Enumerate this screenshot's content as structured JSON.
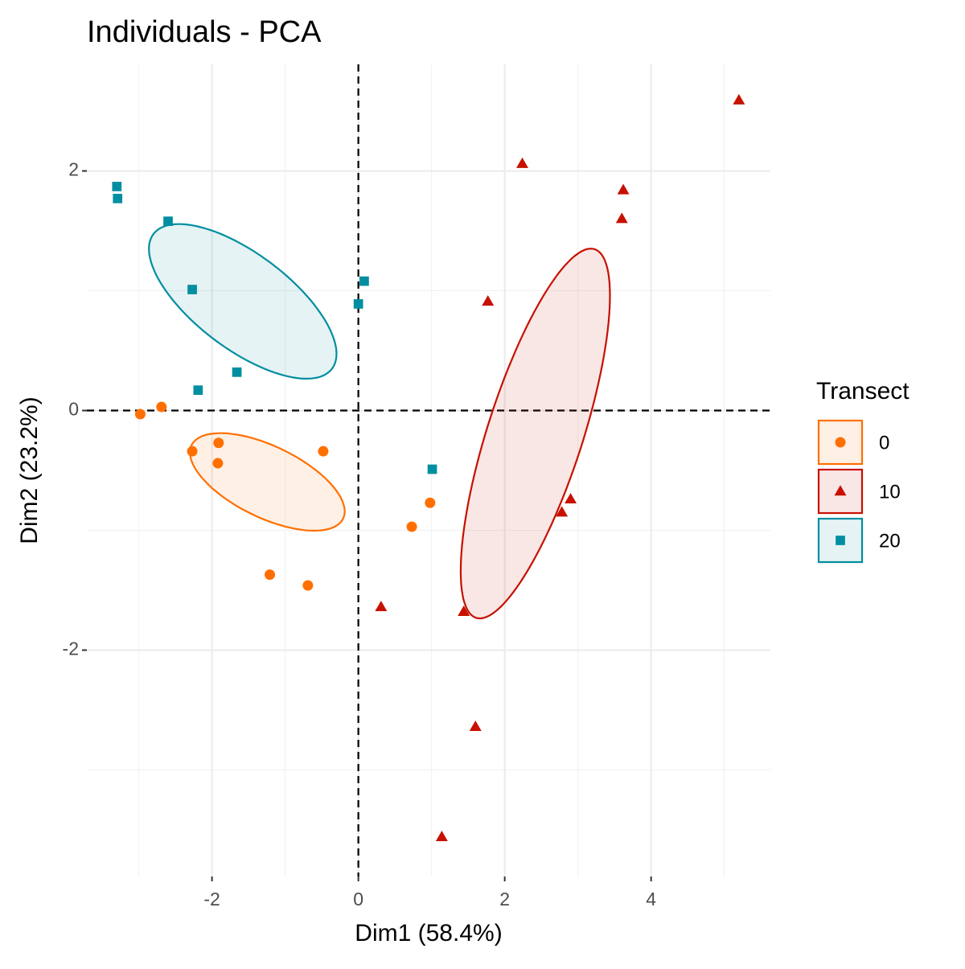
{
  "chart_data": {
    "type": "scatter",
    "title": "Individuals - PCA",
    "x_label": "Dim1 (58.4%)",
    "y_label": "Dim2 (23.2%)",
    "xlim": [
      -3.71,
      5.63
    ],
    "ylim": [
      -3.89,
      2.89
    ],
    "xticks": [
      -2,
      0,
      2,
      4
    ],
    "yticks": [
      -2,
      0,
      2
    ],
    "grid": true,
    "legend_title": "Transect",
    "legend_position": "right",
    "series": [
      {
        "name": "0",
        "color": "#FF6F00",
        "shape": "circle",
        "x": [
          -2.98,
          -2.69,
          -2.27,
          -1.91,
          -1.92,
          -0.48,
          0.98,
          0.73,
          -1.21,
          -0.69
        ],
        "y": [
          -0.03,
          0.03,
          -0.34,
          -0.27,
          -0.44,
          -0.34,
          -0.77,
          -0.97,
          -1.37,
          -1.46
        ]
      },
      {
        "name": "10",
        "color": "#C71000",
        "shape": "triangle",
        "x": [
          5.2,
          2.24,
          3.62,
          3.6,
          1.77,
          2.9,
          2.78,
          0.31,
          1.44,
          1.6,
          1.14
        ],
        "y": [
          2.59,
          2.06,
          1.84,
          1.6,
          0.91,
          -0.74,
          -0.85,
          -1.64,
          -1.68,
          -2.64,
          -3.56
        ]
      },
      {
        "name": "20",
        "color": "#008EA0",
        "shape": "square",
        "x": [
          -3.3,
          -3.29,
          -2.6,
          -2.27,
          0.08,
          0.0,
          -1.66,
          -2.19,
          1.01
        ],
        "y": [
          1.87,
          1.77,
          1.58,
          1.01,
          1.08,
          0.89,
          0.32,
          0.17,
          -0.49
        ]
      }
    ]
  }
}
